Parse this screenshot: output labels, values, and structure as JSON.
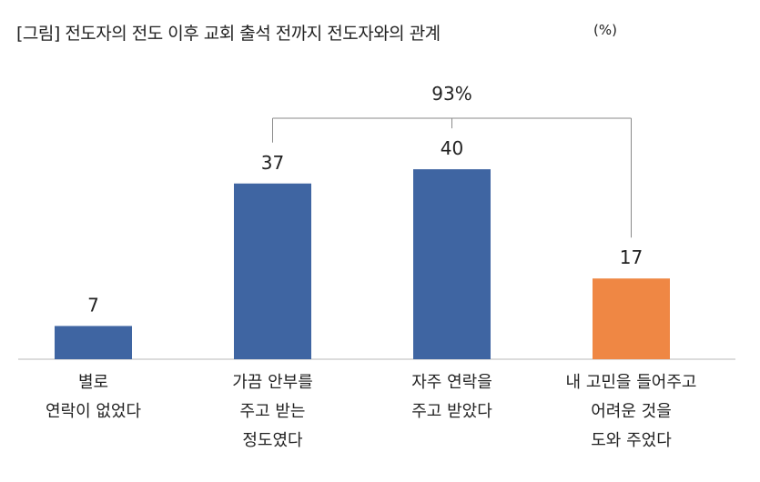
{
  "chart_data": {
    "type": "bar",
    "title": "[그림] 전도자의 전도 이후 교회 출석 전까지 전도자와의 관계",
    "unit": "(%)",
    "categories": [
      [
        "별로",
        "연락이 없었다"
      ],
      [
        "가끔 안부를",
        "주고 받는",
        "정도였다"
      ],
      [
        "자주 연락을",
        "주고 받았다"
      ],
      [
        "내 고민을 들어주고",
        "어려운 것을",
        "도와 주었다"
      ]
    ],
    "values": [
      7,
      37,
      40,
      17
    ],
    "bar_colors": [
      "#3f65a2",
      "#3f65a2",
      "#3f65a2",
      "#ef8744"
    ],
    "ylim": [
      0,
      45
    ],
    "grid": false,
    "bracket": {
      "label": "93%",
      "covers": [
        1,
        3
      ]
    }
  }
}
